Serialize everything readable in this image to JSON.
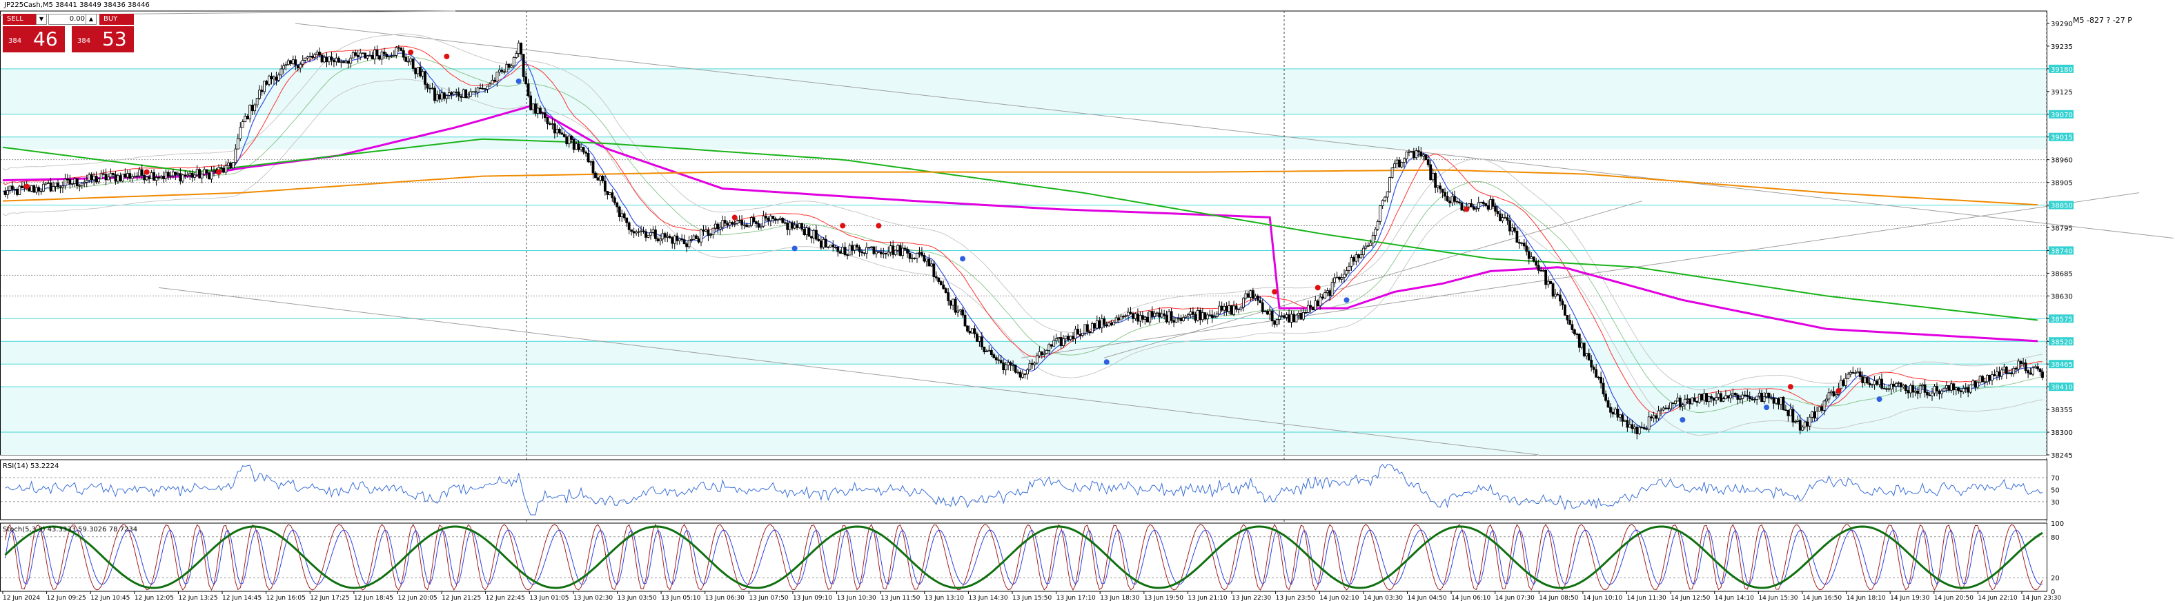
{
  "symbol_info": "JP225Cash,M5  38441 38449 38436 38446",
  "top_right_info": "M5 -827 ? -27 P",
  "trade_panel": {
    "sell_label": "SELL",
    "buy_label": "BUY",
    "lot_value": "0.00",
    "sell_small": "384",
    "sell_big": "46",
    "buy_small": "384",
    "buy_big": "53"
  },
  "colors": {
    "bull": "#000000",
    "bear": "#000000",
    "magenta": "#e000e0",
    "green": "#19b319",
    "orange": "#f08a00",
    "red_ma": "#ff3030",
    "blue_ma": "#3050e0",
    "zone_fill": "#e8fafa",
    "zone_line": "#00c8c8",
    "label_bg": "#33d1d1",
    "rsi": "#3a6fd8",
    "stoch_k": "#a02020",
    "stoch_d": "#3040e0",
    "stoch_slow": "#107010"
  },
  "chart_data": [
    {
      "type": "candlestick",
      "title": "",
      "ylim": [
        38245,
        39320
      ],
      "yticks": [
        39290,
        39235,
        39180,
        39125,
        39070,
        39015,
        38960,
        38905,
        38850,
        38795,
        38740,
        38685,
        38630,
        38575,
        38520,
        38465,
        38410,
        38355,
        38300,
        38245
      ],
      "highlighted_labels": [
        39180,
        39070,
        39015,
        38850,
        38740,
        38575,
        38520,
        38465,
        38410
      ],
      "xticks": [
        "12 Jun 2024",
        "12 Jun 09:25",
        "12 Jun 10:45",
        "12 Jun 12:05",
        "12 Jun 13:25",
        "12 Jun 14:45",
        "12 Jun 16:05",
        "12 Jun 17:25",
        "12 Jun 18:45",
        "12 Jun 20:05",
        "12 Jun 21:25",
        "12 Jun 22:45",
        "13 Jun 01:05",
        "13 Jun 02:30",
        "13 Jun 03:50",
        "13 Jun 05:10",
        "13 Jun 06:30",
        "13 Jun 07:50",
        "13 Jun 09:10",
        "13 Jun 10:30",
        "13 Jun 11:50",
        "13 Jun 13:10",
        "13 Jun 14:30",
        "13 Jun 15:50",
        "13 Jun 17:10",
        "13 Jun 18:30",
        "13 Jun 19:50",
        "13 Jun 21:10",
        "13 Jun 22:30",
        "13 Jun 23:50",
        "14 Jun 02:10",
        "14 Jun 03:30",
        "14 Jun 04:50",
        "14 Jun 06:10",
        "14 Jun 07:30",
        "14 Jun 08:50",
        "14 Jun 10:10",
        "14 Jun 11:30",
        "14 Jun 12:50",
        "14 Jun 14:10",
        "14 Jun 15:30",
        "14 Jun 16:50",
        "14 Jun 18:10",
        "14 Jun 19:30",
        "14 Jun 20:50",
        "14 Jun 22:10",
        "14 Jun 23:30"
      ],
      "close_path": [
        [
          0,
          38880
        ],
        [
          20,
          38895
        ],
        [
          40,
          38915
        ],
        [
          60,
          38925
        ],
        [
          70,
          38920
        ],
        [
          85,
          38925
        ],
        [
          95,
          38940
        ],
        [
          100,
          39050
        ],
        [
          110,
          39150
        ],
        [
          120,
          39190
        ],
        [
          130,
          39210
        ],
        [
          140,
          39200
        ],
        [
          155,
          39215
        ],
        [
          165,
          39225
        ],
        [
          175,
          39160
        ],
        [
          180,
          39110
        ],
        [
          190,
          39120
        ],
        [
          200,
          39130
        ],
        [
          210,
          39180
        ],
        [
          215,
          39230
        ],
        [
          220,
          39090
        ],
        [
          230,
          39030
        ],
        [
          240,
          38990
        ],
        [
          250,
          38900
        ],
        [
          260,
          38800
        ],
        [
          270,
          38780
        ],
        [
          285,
          38760
        ],
        [
          300,
          38800
        ],
        [
          310,
          38810
        ],
        [
          320,
          38810
        ],
        [
          335,
          38790
        ],
        [
          345,
          38740
        ],
        [
          360,
          38745
        ],
        [
          375,
          38740
        ],
        [
          385,
          38720
        ],
        [
          395,
          38620
        ],
        [
          405,
          38530
        ],
        [
          415,
          38470
        ],
        [
          425,
          38440
        ],
        [
          435,
          38500
        ],
        [
          450,
          38550
        ],
        [
          470,
          38580
        ],
        [
          490,
          38580
        ],
        [
          505,
          38590
        ],
        [
          515,
          38600
        ],
        [
          520,
          38640
        ],
        [
          530,
          38570
        ],
        [
          540,
          38580
        ],
        [
          550,
          38620
        ],
        [
          560,
          38700
        ],
        [
          570,
          38760
        ],
        [
          580,
          38950
        ],
        [
          590,
          38980
        ],
        [
          600,
          38870
        ],
        [
          610,
          38840
        ],
        [
          620,
          38850
        ],
        [
          630,
          38780
        ],
        [
          640,
          38700
        ],
        [
          650,
          38600
        ],
        [
          660,
          38480
        ],
        [
          670,
          38360
        ],
        [
          680,
          38300
        ],
        [
          690,
          38340
        ],
        [
          700,
          38380
        ],
        [
          720,
          38390
        ],
        [
          740,
          38380
        ],
        [
          750,
          38310
        ],
        [
          760,
          38380
        ],
        [
          770,
          38440
        ],
        [
          790,
          38410
        ],
        [
          805,
          38400
        ],
        [
          820,
          38410
        ],
        [
          830,
          38440
        ],
        [
          840,
          38460
        ],
        [
          850,
          38440
        ]
      ],
      "overlays": [
        {
          "name": "",
          "color": "#e000e0",
          "points": [
            [
              0,
              38910
            ],
            [
              80,
              38920
            ],
            [
              100,
              38940
            ],
            [
              140,
              38970
            ],
            [
              190,
              39040
            ],
            [
              220,
              39090
            ],
            [
              250,
              38990
            ],
            [
              300,
              38890
            ],
            [
              380,
              38860
            ],
            [
              440,
              38840
            ],
            [
              530,
              38820
            ],
            [
              531,
              38600
            ],
            [
              560,
              38600
            ],
            [
              580,
              38640
            ],
            [
              600,
              38660
            ],
            [
              620,
              38690
            ],
            [
              650,
              38700
            ],
            [
              700,
              38620
            ],
            [
              760,
              38550
            ],
            [
              850,
              38520
            ]
          ]
        },
        {
          "name": "",
          "color": "#19b319",
          "points": [
            [
              0,
              38990
            ],
            [
              80,
              38930
            ],
            [
              140,
              38970
            ],
            [
              200,
              39010
            ],
            [
              250,
              39000
            ],
            [
              350,
              38960
            ],
            [
              450,
              38880
            ],
            [
              550,
              38780
            ],
            [
              620,
              38720
            ],
            [
              680,
              38700
            ],
            [
              760,
              38630
            ],
            [
              850,
              38570
            ]
          ]
        },
        {
          "name": "",
          "color": "#f08a00",
          "points": [
            [
              0,
              38860
            ],
            [
              100,
              38880
            ],
            [
              200,
              38920
            ],
            [
              300,
              38930
            ],
            [
              400,
              38930
            ],
            [
              500,
              38930
            ],
            [
              600,
              38935
            ],
            [
              660,
              38925
            ],
            [
              760,
              38880
            ],
            [
              850,
              38850
            ]
          ]
        }
      ]
    },
    {
      "type": "line",
      "title": "RSI(14) 53.2224",
      "ylim": [
        0,
        100
      ],
      "yticks": [
        70,
        50,
        30
      ],
      "level_lines": [
        70,
        30
      ]
    },
    {
      "type": "line",
      "title": "Stoch(5,3,3) 43.3333 59.3026 78.7234",
      "ylim": [
        0,
        100
      ],
      "yticks": [
        100,
        80,
        20,
        0
      ],
      "level_lines": [
        80,
        20
      ]
    }
  ]
}
